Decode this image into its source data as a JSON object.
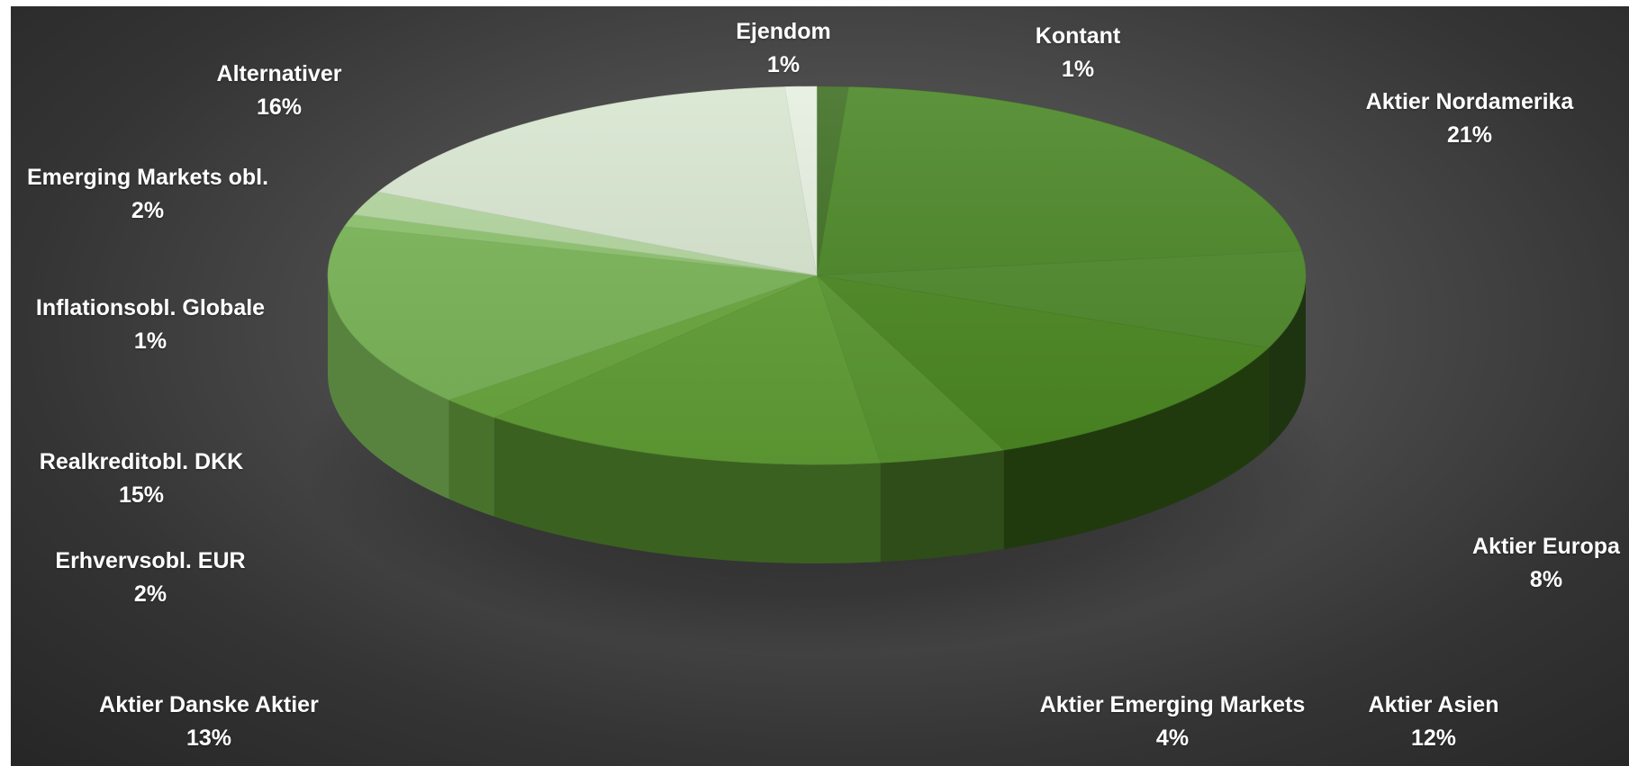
{
  "colors": {
    "background": "#3d3d3d",
    "label_text": "#ffffff"
  },
  "chart_data": {
    "type": "pie",
    "style": "3d-exploded-tilted",
    "title": "",
    "start_angle_deg": 90,
    "direction": "clockwise",
    "slices": [
      {
        "label": "Kontant",
        "value": 1,
        "pct_label": "1%",
        "color": "#3f7024"
      },
      {
        "label": "Aktier Nordamerika",
        "value": 21,
        "pct_label": "21%",
        "color": "#4a8726"
      },
      {
        "label": "Aktier Europa",
        "value": 8,
        "pct_label": "8%",
        "color": "#4f8a2c"
      },
      {
        "label": "Aktier Asien",
        "value": 12,
        "pct_label": "12%",
        "color": "#4c8a22"
      },
      {
        "label": "Aktier Emerging Markets",
        "value": 4,
        "pct_label": "4%",
        "color": "#5b9931"
      },
      {
        "label": "Aktier Danske Aktier",
        "value": 13,
        "pct_label": "13%",
        "color": "#62a136"
      },
      {
        "label": "Erhvervsobl. EUR",
        "value": 2,
        "pct_label": "2%",
        "color": "#6ba93f"
      },
      {
        "label": "Realkreditobl. DKK",
        "value": 15,
        "pct_label": "15%",
        "color": "#7ab657"
      },
      {
        "label": "Inflationsobl. Globale",
        "value": 1,
        "pct_label": "1%",
        "color": "#8ec46e"
      },
      {
        "label": "Emerging Markets obl.",
        "value": 2,
        "pct_label": "2%",
        "color": "#b3d69f"
      },
      {
        "label": "Alternativer",
        "value": 16,
        "pct_label": "16%",
        "color": "#d8e6d0"
      },
      {
        "label": "Ejendom",
        "value": 1,
        "pct_label": "1%",
        "color": "#e6efe0"
      }
    ],
    "legend": "none",
    "data_labels": "category and percentage outside slices"
  }
}
